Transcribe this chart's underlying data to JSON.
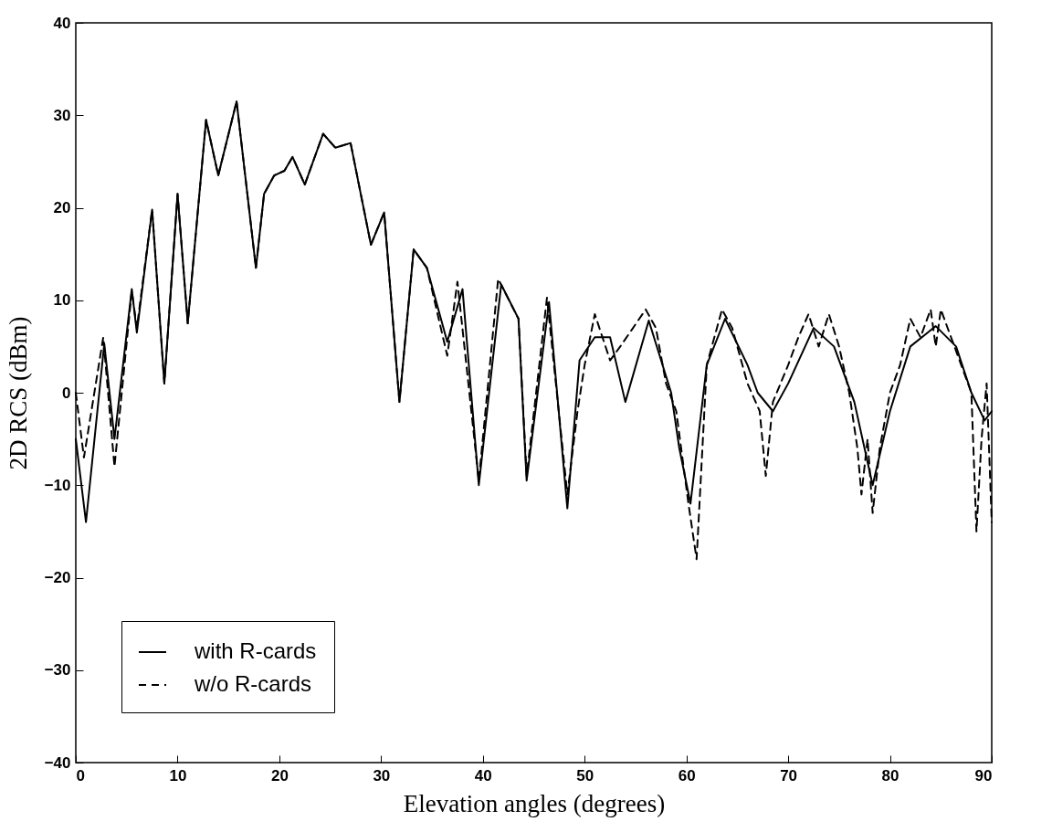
{
  "chart_data": {
    "type": "line",
    "xlabel": "Elevation angles (degrees)",
    "ylabel": "2D RCS (dBm)",
    "xlim": [
      0,
      90
    ],
    "xticks": [
      0,
      10,
      20,
      30,
      40,
      50,
      60,
      70,
      80,
      90
    ],
    "ylim": [
      -40,
      40
    ],
    "yticks": [
      -40,
      -30,
      -20,
      -10,
      0,
      10,
      20,
      30,
      40
    ],
    "grid": false,
    "legend": "bottom left",
    "series": [
      {
        "name": "with R-cards",
        "color": "#000000",
        "line_style": "solid",
        "x": [
          0,
          1.0,
          2.8,
          3.8,
          5.5,
          6.0,
          7.5,
          8.7,
          10.0,
          11.0,
          12.8,
          14.0,
          15.8,
          17.7,
          18.5,
          19.5,
          20.5,
          21.3,
          22.5,
          24.3,
          25.5,
          27.0,
          29.0,
          30.3,
          31.8,
          33.2,
          34.5,
          36.5,
          38.0,
          39.6,
          41.8,
          43.5,
          44.3,
          46.5,
          48.3,
          49.5,
          51.0,
          52.5,
          54.0,
          56.3,
          58.5,
          59.3,
          60.4,
          62.0,
          63.8,
          66.0,
          67.0,
          68.5,
          70.0,
          72.5,
          74.5,
          76.5,
          78.3,
          80.0,
          82.0,
          84.5,
          86.5,
          88.0,
          89.3,
          90
        ],
        "values": [
          -5,
          -14,
          5.3,
          -5,
          11.2,
          6.5,
          19.8,
          1,
          21.5,
          7.5,
          29.5,
          23.5,
          31.5,
          13.5,
          21.5,
          23.5,
          24,
          25.5,
          22.5,
          28,
          26.5,
          27,
          16,
          19.5,
          -1,
          15.5,
          13.5,
          5.5,
          11.2,
          -10,
          11.7,
          8,
          -9.5,
          9.8,
          -12.5,
          3.5,
          6,
          6,
          -1,
          7.8,
          0,
          -6,
          -12,
          3,
          8,
          3,
          0,
          -2,
          1,
          7,
          5,
          -1,
          -10,
          -2,
          5,
          7.2,
          5,
          0,
          -3,
          -2
        ]
      },
      {
        "name": "w/o  R-cards",
        "color": "#000000",
        "line_style": "dashed",
        "x": [
          0,
          0.8,
          2.7,
          3.8,
          5.5,
          6.0,
          7.5,
          8.7,
          10.0,
          11.0,
          12.8,
          14.0,
          15.8,
          17.7,
          18.5,
          19.5,
          20.5,
          21.3,
          22.5,
          24.3,
          25.5,
          27.0,
          29.0,
          30.3,
          31.8,
          33.2,
          34.5,
          36.5,
          37.5,
          39.6,
          41.5,
          43.5,
          44.3,
          46.3,
          48.3,
          49.3,
          50.0,
          51.0,
          52.5,
          53.5,
          56.0,
          57.0,
          58.0,
          59.0,
          60.2,
          61.0,
          62.0,
          63.5,
          64.5,
          66.0,
          67.2,
          67.8,
          68.5,
          70.0,
          71.0,
          72.0,
          73.0,
          74.0,
          75.0,
          76.0,
          76.8,
          77.2,
          77.8,
          78.3,
          79.0,
          80.0,
          81.0,
          82.0,
          83.0,
          84.0,
          84.5,
          85.0,
          86.0,
          87.0,
          88.0,
          88.5,
          89.0,
          89.5,
          90
        ],
        "values": [
          0,
          -7,
          6,
          -8,
          11,
          7,
          19.8,
          1,
          21.5,
          7.5,
          29.5,
          23.5,
          31.5,
          13.5,
          21.5,
          23.5,
          24,
          25.5,
          22.5,
          28,
          26.5,
          27,
          16,
          19.5,
          -1,
          15.5,
          13.5,
          4,
          12,
          -9.5,
          12.3,
          8,
          -9,
          10.3,
          -11,
          -2,
          3,
          8.5,
          3.5,
          5,
          9,
          7,
          1,
          -2,
          -12,
          -18,
          3,
          9,
          7,
          1,
          -2,
          -9,
          -1,
          3,
          6,
          8.5,
          5,
          8.5,
          5,
          0,
          -6,
          -11,
          -5,
          -13,
          -6,
          0,
          3,
          8,
          6,
          9,
          5,
          9,
          6,
          3,
          0,
          -15,
          -5,
          1,
          -14
        ]
      }
    ]
  }
}
